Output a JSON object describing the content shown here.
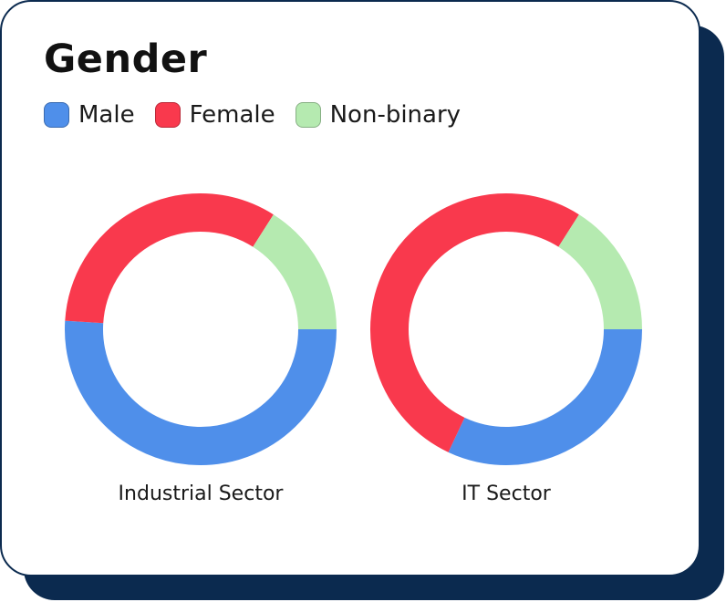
{
  "title": "Gender",
  "legend": [
    {
      "label": "Male",
      "color": "#4f8fea"
    },
    {
      "label": "Female",
      "color": "#f9394d"
    },
    {
      "label": "Non-binary",
      "color": "#b5eab0"
    }
  ],
  "chart_data": [
    {
      "type": "pie",
      "variant": "donut",
      "title": "Industrial Sector",
      "categories": [
        "Male",
        "Female",
        "Non-binary"
      ],
      "values": [
        51,
        33,
        16
      ],
      "unit": "%"
    },
    {
      "type": "pie",
      "variant": "donut",
      "title": "IT Sector",
      "categories": [
        "Male",
        "Female",
        "Non-binary"
      ],
      "values": [
        32,
        52,
        16
      ],
      "unit": "%"
    }
  ]
}
